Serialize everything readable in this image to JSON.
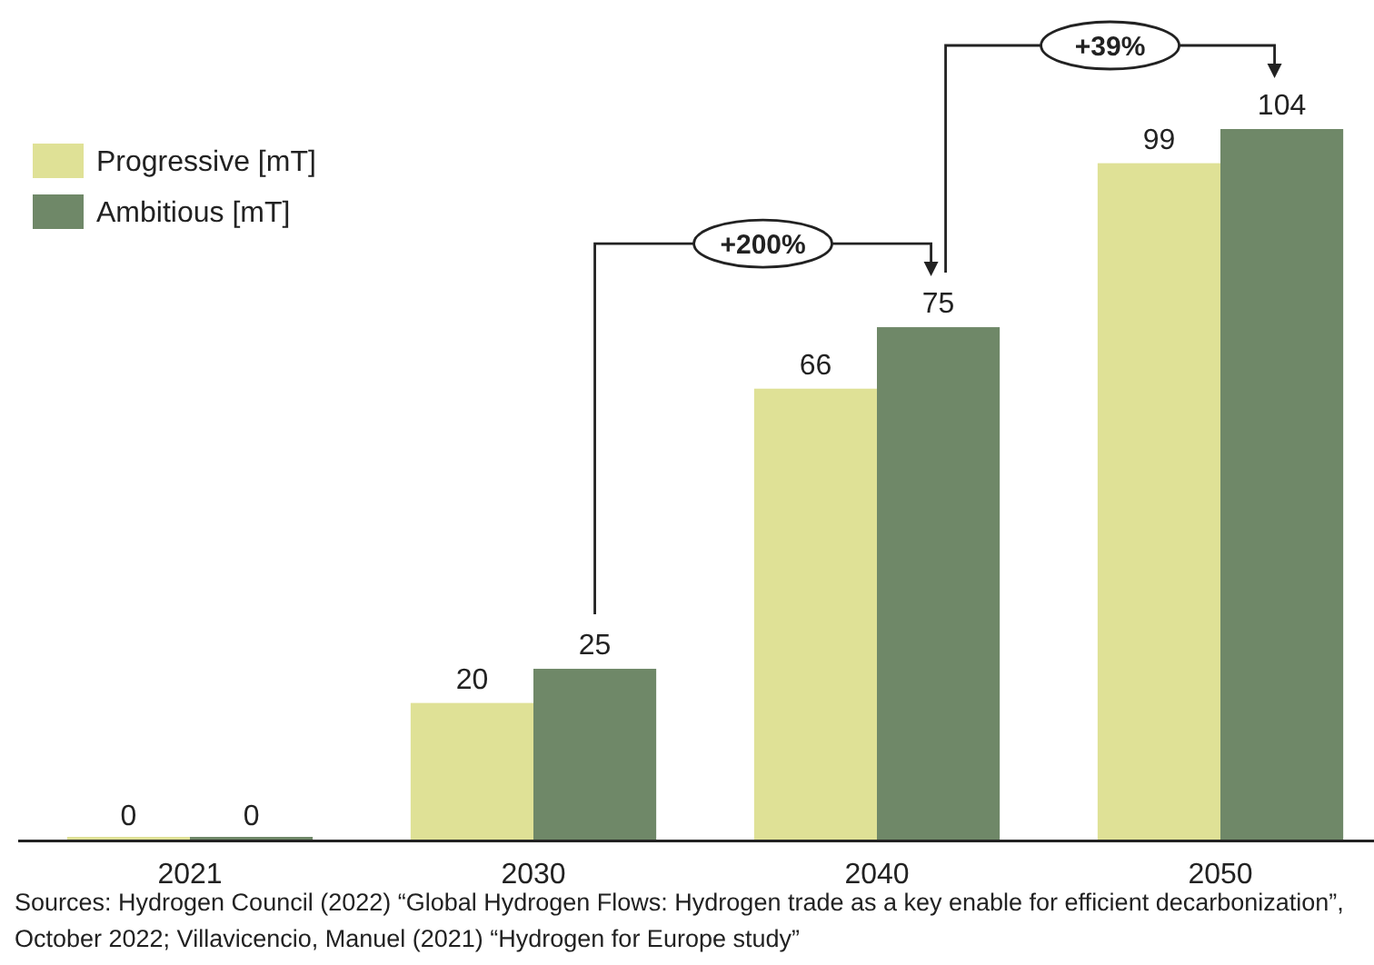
{
  "chart_data": {
    "type": "bar",
    "categories": [
      "2021",
      "2030",
      "2040",
      "2050"
    ],
    "series": [
      {
        "name": "Progressive [mT]",
        "color": "#dfe196",
        "values": [
          0,
          20,
          66,
          99
        ]
      },
      {
        "name": "Ambitious [mT]",
        "color": "#6f8868",
        "values": [
          0,
          25,
          75,
          104
        ]
      }
    ],
    "data_labels": true,
    "legend": "top left",
    "annotations": [
      "+200%",
      "+39%",
      "Sources: Hydrogen Council (2022) “Global Hydrogen Flows: Hydrogen trade as a key enable for efficient decarbonization”, October 2022; Villavicencio, Manuel (2021) “Hydrogen for Europe study”"
    ]
  }
}
